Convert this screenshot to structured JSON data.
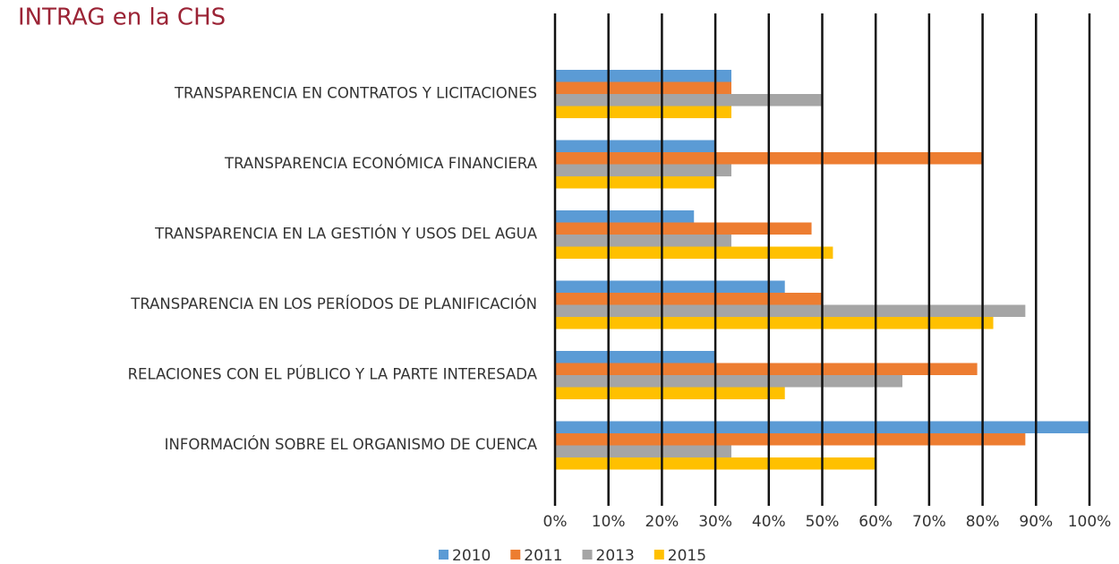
{
  "chart_data": {
    "type": "hbar",
    "title": "INTRAG en la CHS",
    "categories": [
      "TRANSPARENCIA EN CONTRATOS Y LICITACIONES",
      "TRANSPARENCIA ECONÓMICA FINANCIERA",
      "TRANSPARENCIA EN LA GESTIÓN Y USOS DEL AGUA",
      "TRANSPARENCIA EN LOS PERÍODOS DE PLANIFICACIÓN",
      "RELACIONES CON EL PÚBLICO Y LA PARTE INTERESADA",
      "INFORMACIÓN SOBRE EL ORGANISMO DE CUENCA"
    ],
    "series": [
      {
        "name": "2010",
        "color": "#5b9bd5",
        "values": [
          33,
          30,
          26,
          43,
          30,
          100
        ]
      },
      {
        "name": "2011",
        "color": "#ed7d31",
        "values": [
          33,
          80,
          48,
          50,
          79,
          88
        ]
      },
      {
        "name": "2013",
        "color": "#a5a5a5",
        "values": [
          50,
          33,
          33,
          88,
          65,
          33
        ]
      },
      {
        "name": "2015",
        "color": "#ffc000",
        "values": [
          33,
          30,
          52,
          82,
          43,
          60
        ]
      }
    ],
    "xlim": [
      0,
      100
    ],
    "xticks": [
      {
        "value": 0,
        "label": "0%"
      },
      {
        "value": 10,
        "label": "10%"
      },
      {
        "value": 20,
        "label": "20%"
      },
      {
        "value": 30,
        "label": "30%"
      },
      {
        "value": 40,
        "label": "40%"
      },
      {
        "value": 50,
        "label": "50%"
      },
      {
        "value": 60,
        "label": "60%"
      },
      {
        "value": 70,
        "label": "70%"
      },
      {
        "value": 80,
        "label": "80%"
      },
      {
        "value": 90,
        "label": "90%"
      },
      {
        "value": 100,
        "label": "100%"
      }
    ],
    "grid": true,
    "legend": "bottom"
  }
}
